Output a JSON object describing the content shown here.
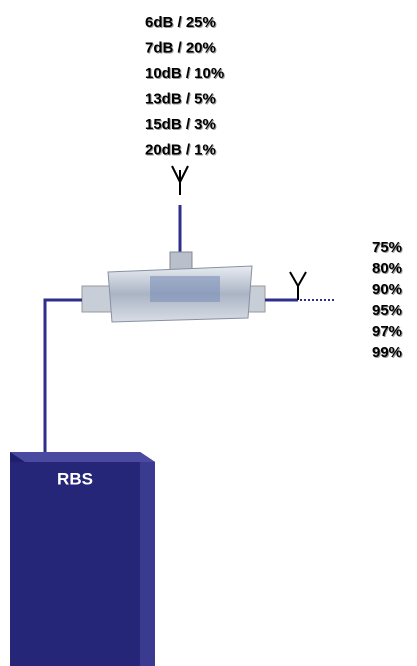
{
  "coupler_outputs": [
    "6dB / 25%",
    "7dB / 20%",
    "10dB / 10%",
    "13dB / 5%",
    "15dB / 3%",
    "20dB / 1%"
  ],
  "through_outputs": [
    "75%",
    "80%",
    "90%",
    "95%",
    "97%",
    "99%"
  ],
  "base_station": {
    "label": "RBS"
  }
}
